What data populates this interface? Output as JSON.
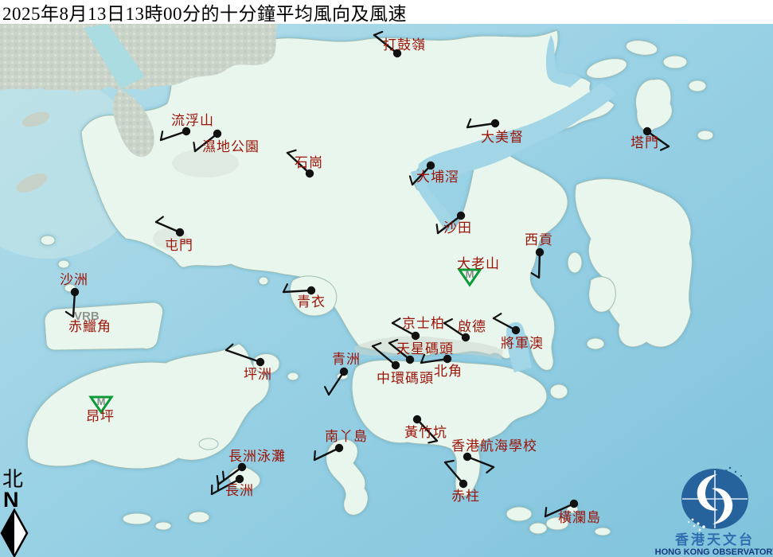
{
  "title": "2025年8月13日13時00分的十分鐘平均風向及風速",
  "compass": {
    "chinese": "北",
    "letter": "N"
  },
  "logo": {
    "chinese": "香港天文台",
    "english": "HONG KONG OBSERVATORY"
  },
  "colors": {
    "sea": "#9ed3e5",
    "land": "#e9f6ee",
    "coast": "#9fbdb2",
    "label_red": "#9b1206",
    "barb_black": "#111111",
    "maintenance_green": "#0b9a35",
    "vrb_gray": "#8d958d",
    "logo_blue": "#26639c",
    "logo_text_blue": "#2f6fb0",
    "logo_text_navy": "#16397e"
  },
  "map": {
    "vrb_text": "VRB",
    "stations": [
      {
        "name": "打鼓嶺",
        "label": [
          481,
          62
        ],
        "dot": [
          499,
          67
        ],
        "staff": [
          470,
          44
        ],
        "ticks": 1
      },
      {
        "name": "流浮山",
        "label": [
          215,
          157
        ],
        "dot": [
          234,
          165
        ],
        "staff": [
          202,
          176
        ],
        "ticks": 1
      },
      {
        "name": "濕地公園",
        "label": [
          254,
          190
        ],
        "dot": [
          273,
          168
        ],
        "staff": [
          245,
          190
        ],
        "ticks": 1
      },
      {
        "name": "石崗",
        "label": [
          370,
          210
        ],
        "dot": [
          389,
          218
        ],
        "staff": [
          361,
          192
        ],
        "ticks": 1
      },
      {
        "name": "大美督",
        "label": [
          604,
          178
        ],
        "dot": [
          622,
          155
        ],
        "staff": [
          587,
          160
        ],
        "ticks": 1
      },
      {
        "name": "塔門",
        "label": [
          792,
          185
        ],
        "dot": [
          813,
          165
        ],
        "staff": [
          840,
          184
        ],
        "ticks": 1
      },
      {
        "name": "大埔滘",
        "label": [
          523,
          228
        ],
        "dot": [
          541,
          208
        ],
        "staff": [
          518,
          232
        ],
        "ticks": 1
      },
      {
        "name": "沙田",
        "label": [
          557,
          292
        ],
        "dot": [
          579,
          271
        ],
        "staff": [
          550,
          293
        ],
        "ticks": 1
      },
      {
        "name": "屯門",
        "label": [
          207,
          314
        ],
        "dot": [
          226,
          292
        ],
        "staff": [
          196,
          279
        ],
        "ticks": 1
      },
      {
        "name": "西貢",
        "label": [
          659,
          307
        ],
        "dot": [
          678,
          317
        ],
        "staff": [
          677,
          349
        ],
        "ticks": 1
      },
      {
        "name": "沙洲",
        "label": [
          75,
          357
        ],
        "dot": [
          94,
          367
        ],
        "staff": [
          92,
          398
        ],
        "ticks": 1
      },
      {
        "name": "青衣",
        "label": [
          373,
          385
        ],
        "dot": [
          391,
          365
        ],
        "staff": [
          356,
          367
        ],
        "ticks": 1
      },
      {
        "name": "京士柏",
        "label": [
          505,
          412
        ],
        "dot": [
          522,
          422
        ],
        "staff": [
          493,
          406
        ],
        "ticks": 1
      },
      {
        "name": "啟德",
        "label": [
          575,
          416
        ],
        "dot": [
          585,
          424
        ],
        "staff": [
          558,
          406
        ],
        "ticks": 1
      },
      {
        "name": "將軍澳",
        "label": [
          629,
          437
        ],
        "dot": [
          648,
          415
        ],
        "staff": [
          620,
          400
        ],
        "ticks": 1
      },
      {
        "name": "天星碼頭",
        "label": [
          498,
          444
        ],
        "dot": [
          515,
          452
        ],
        "staff": [
          489,
          431
        ],
        "ticks": 1
      },
      {
        "name": "北角",
        "label": [
          545,
          472
        ],
        "dot": [
          562,
          451
        ],
        "staff": [
          529,
          456
        ],
        "ticks": 1
      },
      {
        "name": "中環碼頭",
        "label": [
          473,
          481
        ],
        "dot": [
          497,
          459
        ],
        "staff": [
          468,
          435
        ],
        "ticks": 1
      },
      {
        "name": "青洲",
        "label": [
          417,
          457
        ],
        "dot": [
          432,
          467
        ],
        "staff": [
          413,
          496
        ],
        "ticks": 1
      },
      {
        "name": "坪洲",
        "label": [
          306,
          476
        ],
        "dot": [
          327,
          455
        ],
        "staff": [
          284,
          440
        ],
        "ticks": 1
      },
      {
        "name": "南丫島",
        "label": [
          408,
          554
        ],
        "dot": [
          426,
          563
        ],
        "staff": [
          395,
          578
        ],
        "ticks": 1
      },
      {
        "name": "黃竹坑",
        "label": [
          508,
          549
        ],
        "dot": [
          524,
          527
        ],
        "staff": [
          549,
          554
        ],
        "ticks": 1
      },
      {
        "name": "香港航海學校",
        "label": [
          567,
          566
        ],
        "dot": [
          587,
          574
        ],
        "staff": [
          620,
          587
        ],
        "ticks": 1
      },
      {
        "name": "赤柱",
        "label": [
          567,
          629
        ],
        "dot": [
          582,
          608
        ],
        "staff": [
          559,
          581
        ],
        "ticks": 1
      },
      {
        "name": "長洲泳灘",
        "label": [
          287,
          579
        ],
        "dot": [
          304,
          587
        ],
        "staff": [
          274,
          609
        ],
        "ticks": 2
      },
      {
        "name": "長洲",
        "label": [
          283,
          622
        ],
        "dot": [
          301,
          602
        ],
        "staff": [
          266,
          621
        ],
        "ticks": 2
      },
      {
        "name": "橫瀾島",
        "label": [
          701,
          656
        ],
        "dot": [
          721,
          633
        ],
        "staff": [
          685,
          649
        ],
        "ticks": 1
      }
    ],
    "maintenance_stations": [
      {
        "name": "大老山",
        "label": [
          574,
          337
        ],
        "marker": [
          590,
          348
        ],
        "symbol": "M"
      },
      {
        "name": "昂坪",
        "label": [
          108,
          529
        ],
        "marker": [
          127,
          508
        ],
        "symbol": "M"
      }
    ],
    "vrb_stations": [
      {
        "name": "赤鱲角",
        "label": [
          86,
          416
        ],
        "vrb_pos": [
          93,
          402
        ]
      }
    ]
  }
}
